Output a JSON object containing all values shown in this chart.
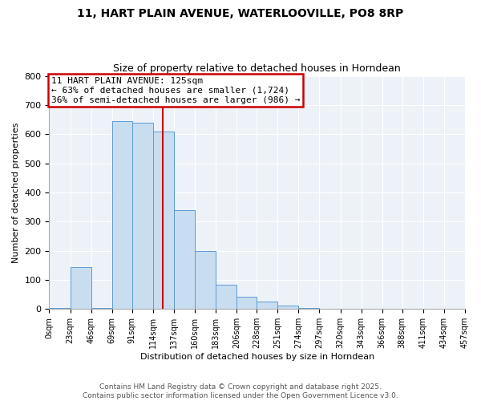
{
  "title_line1": "11, HART PLAIN AVENUE, WATERLOOVILLE, PO8 8RP",
  "title_line2": "Size of property relative to detached houses in Horndean",
  "xlabel": "Distribution of detached houses by size in Horndean",
  "ylabel": "Number of detached properties",
  "bin_edges": [
    0,
    23,
    46,
    69,
    91,
    114,
    137,
    160,
    183,
    206,
    228,
    251,
    274,
    297,
    320,
    343,
    366,
    388,
    411,
    434,
    457
  ],
  "bin_counts": [
    5,
    145,
    5,
    645,
    640,
    610,
    340,
    200,
    83,
    42,
    27,
    12,
    3,
    0,
    0,
    0,
    0,
    0,
    0,
    0
  ],
  "bar_facecolor": "#c9ddf0",
  "bar_edgecolor": "#5b9bd5",
  "property_size": 125,
  "vline_color": "#cc0000",
  "annotation_title": "11 HART PLAIN AVENUE: 125sqm",
  "annotation_line2": "← 63% of detached houses are smaller (1,724)",
  "annotation_line3": "36% of semi-detached houses are larger (986) →",
  "annotation_box_edgecolor": "#cc0000",
  "ylim": [
    0,
    800
  ],
  "xlim": [
    0,
    457
  ],
  "tick_labels": [
    "0sqm",
    "23sqm",
    "46sqm",
    "69sqm",
    "91sqm",
    "114sqm",
    "137sqm",
    "160sqm",
    "183sqm",
    "206sqm",
    "228sqm",
    "251sqm",
    "274sqm",
    "297sqm",
    "320sqm",
    "343sqm",
    "366sqm",
    "388sqm",
    "411sqm",
    "434sqm",
    "457sqm"
  ],
  "footer_line1": "Contains HM Land Registry data © Crown copyright and database right 2025.",
  "footer_line2": "Contains public sector information licensed under the Open Government Licence v3.0.",
  "background_color": "#edf2f9",
  "grid_color": "#ffffff",
  "title_fontsize": 10,
  "subtitle_fontsize": 9,
  "xlabel_fontsize": 8,
  "ylabel_fontsize": 8,
  "tick_fontsize": 7,
  "ytick_fontsize": 8,
  "annotation_fontsize": 8,
  "footer_fontsize": 6.5
}
